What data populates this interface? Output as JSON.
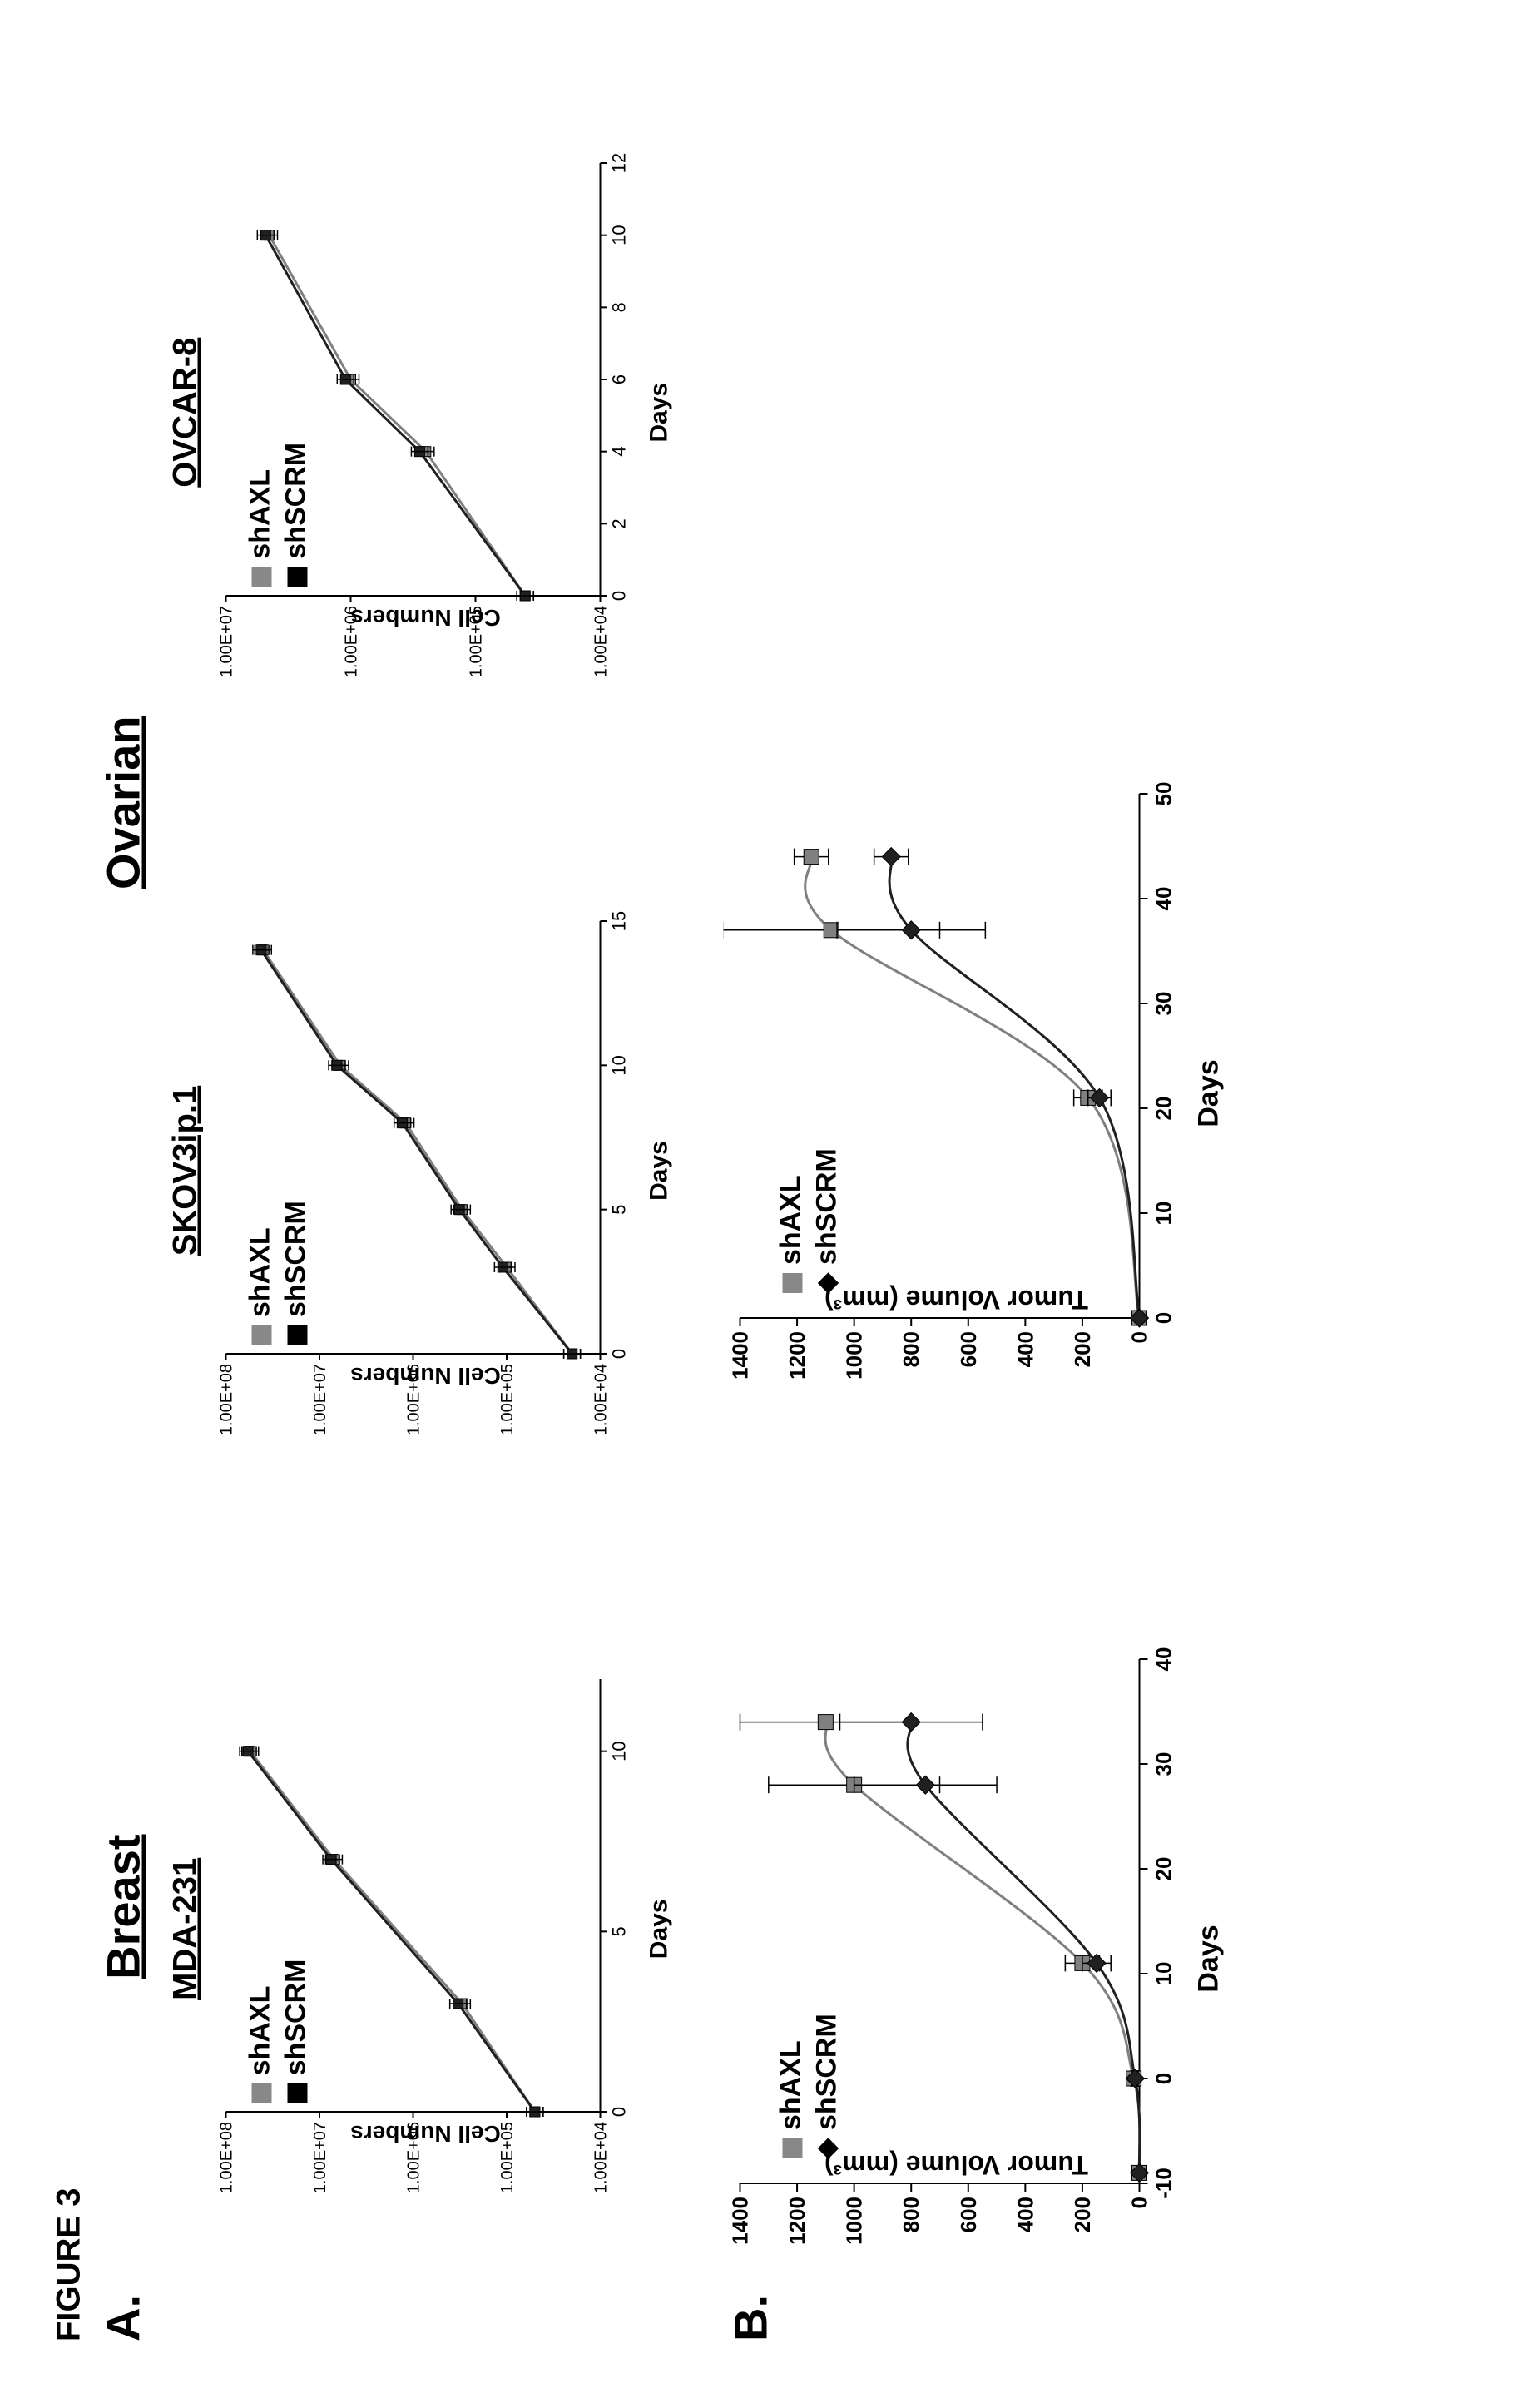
{
  "figure_label": "FIGURE 3",
  "panels": {
    "A": "A.",
    "B": "B."
  },
  "tissues": {
    "breast": "Breast",
    "ovarian": "Ovarian"
  },
  "cell_lines": {
    "mda": "MDA-231",
    "skov": "SKOV3ip.1",
    "ovcar": "OVCAR-8"
  },
  "legendA_1": "shAXL",
  "legendA_2": "shSCRM",
  "legendB_1": "shAXL",
  "legendB_2": "shSCRM",
  "axis_labels": {
    "cell_numbers": "Cell Numbers",
    "days": "Days",
    "tumor_vol": "Tumor Volume (mm³)"
  },
  "colors": {
    "shAXL": "#808080",
    "shSCRM": "#202020",
    "axes": "#000000",
    "bg": "#ffffff"
  },
  "panelA": {
    "mda": {
      "type": "line",
      "x": [
        0,
        3,
        7,
        10
      ],
      "ylog_ticks": [
        "1.00E+04",
        "1.00E+05",
        "1.00E+06",
        "1.00E+07",
        "1.00E+08"
      ],
      "x_ticks": [
        0,
        5,
        10
      ],
      "shAXL": [
        50000.0,
        300000.0,
        7000000.0,
        55000000.0
      ],
      "shSCRM": [
        50000.0,
        330000.0,
        7500000.0,
        58000000.0
      ]
    },
    "skov": {
      "type": "line",
      "x": [
        0,
        3,
        5,
        8,
        10,
        14
      ],
      "ylog_ticks": [
        "1.00E+04",
        "1.00E+05",
        "1.00E+06",
        "1.00E+07",
        "1.00E+08"
      ],
      "x_ticks": [
        0,
        5,
        10,
        15
      ],
      "shAXL": [
        20000.0,
        100000.0,
        300000.0,
        1200000.0,
        6000000.0,
        40000000.0
      ],
      "shSCRM": [
        20000.0,
        110000.0,
        320000.0,
        1300000.0,
        6500000.0,
        42000000.0
      ]
    },
    "ovcar": {
      "type": "line",
      "x": [
        0,
        4,
        6,
        10
      ],
      "ylog_ticks": [
        "1.00E+04",
        "1.00E+05",
        "1.00E+06",
        "1.00E+07"
      ],
      "x_ticks": [
        0,
        2,
        4,
        6,
        8,
        10,
        12
      ],
      "shAXL": [
        40000.0,
        250000.0,
        1000000.0,
        4500000.0
      ],
      "shSCRM": [
        40000.0,
        280000.0,
        1100000.0,
        4800000.0
      ]
    }
  },
  "panelB": {
    "breast": {
      "type": "line",
      "x_ticks": [
        -10,
        0,
        10,
        20,
        30,
        40
      ],
      "y_ticks": [
        0,
        200,
        400,
        600,
        800,
        1000,
        1200,
        1400
      ],
      "x": [
        -9,
        0,
        11,
        28,
        34
      ],
      "shAXL": [
        0,
        20,
        200,
        1000,
        1100
      ],
      "shSCRM": [
        0,
        15,
        150,
        750,
        800
      ],
      "err_shAXL": [
        0,
        10,
        60,
        300,
        300
      ],
      "err_shSCRM": [
        0,
        10,
        50,
        250,
        250
      ]
    },
    "ovarian": {
      "type": "line",
      "x_ticks": [
        0,
        10,
        20,
        30,
        40,
        50
      ],
      "y_ticks": [
        0,
        200,
        400,
        600,
        800,
        1000,
        1200,
        1400
      ],
      "x": [
        0,
        21,
        37,
        44
      ],
      "shAXL": [
        0,
        180,
        1080,
        1150
      ],
      "shSCRM": [
        0,
        140,
        800,
        870
      ],
      "err_shAXL": [
        0,
        50,
        380,
        60
      ],
      "err_shSCRM": [
        0,
        40,
        260,
        60
      ]
    }
  }
}
